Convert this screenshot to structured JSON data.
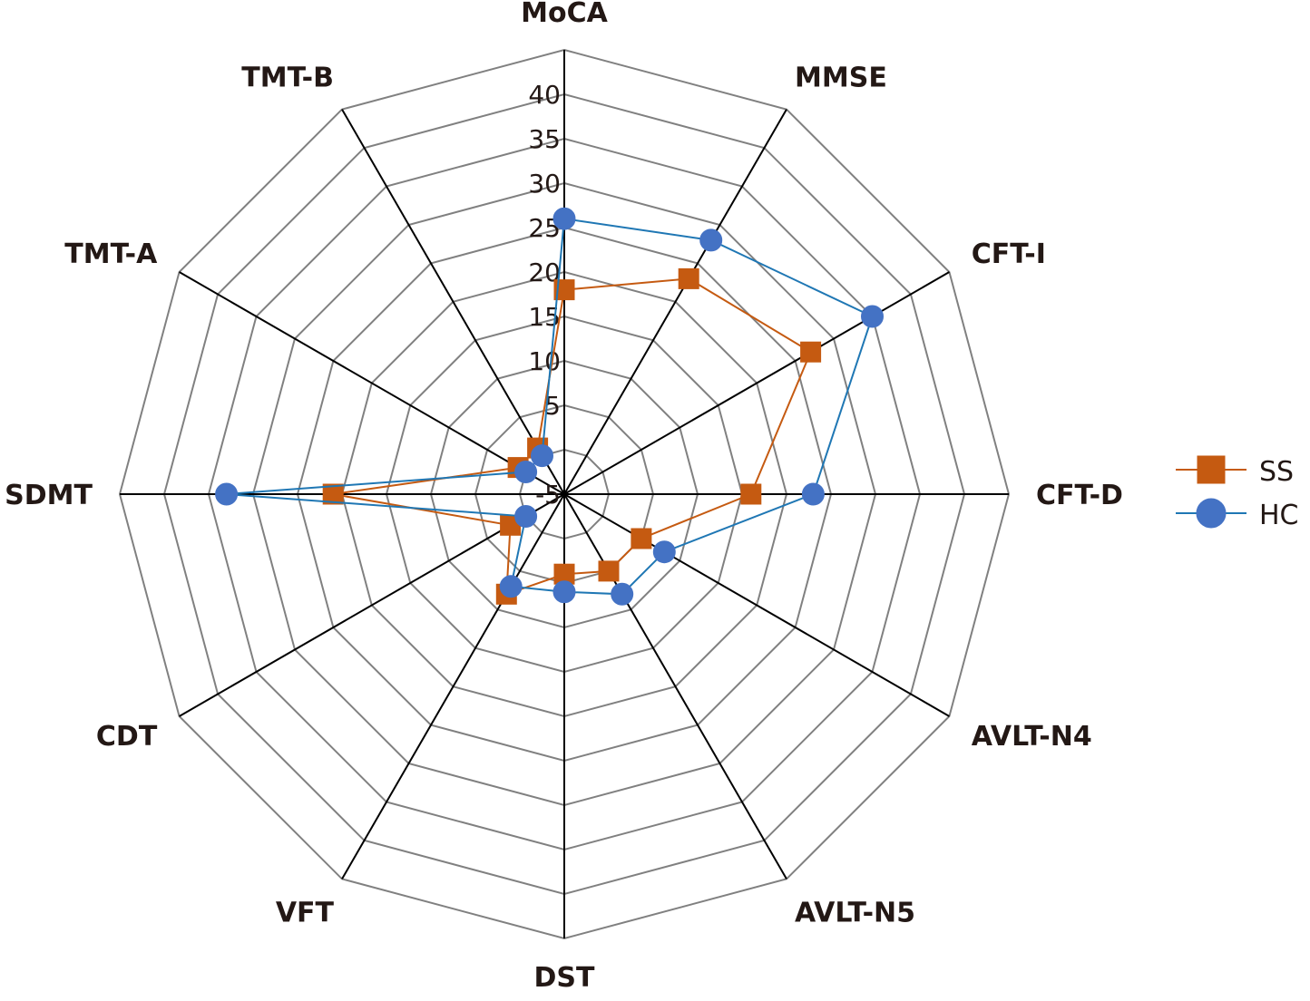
{
  "chart_data": {
    "type": "radar",
    "axes": [
      "MoCA",
      "MMSE",
      "CFT-I",
      "CFT-D",
      "AVLT-N4",
      "AVLT-N5",
      "DST",
      "VFT",
      "CDT",
      "SDMT",
      "TMT-A",
      "TMT-B"
    ],
    "r_ticks": [
      -5,
      5,
      10,
      15,
      20,
      25,
      30,
      35,
      40
    ],
    "r_tick_labels": [
      "-5",
      "5",
      "10",
      "15",
      "20",
      "25",
      "30",
      "35",
      "40"
    ],
    "r_range": [
      -5,
      45
    ],
    "series": [
      {
        "name": "SS",
        "color": "#C55A11",
        "marker": "square",
        "values": [
          18,
          23,
          27,
          16,
          5,
          5,
          4,
          8,
          2,
          21,
          1,
          1
        ]
      },
      {
        "name": "HC",
        "color": "#4472C4",
        "line_color": "#1F77B4",
        "marker": "circle",
        "values": [
          26,
          28,
          35,
          23,
          8,
          8,
          6,
          7,
          0,
          33,
          0,
          0
        ]
      }
    ],
    "legend_position": "right",
    "grid": true
  }
}
